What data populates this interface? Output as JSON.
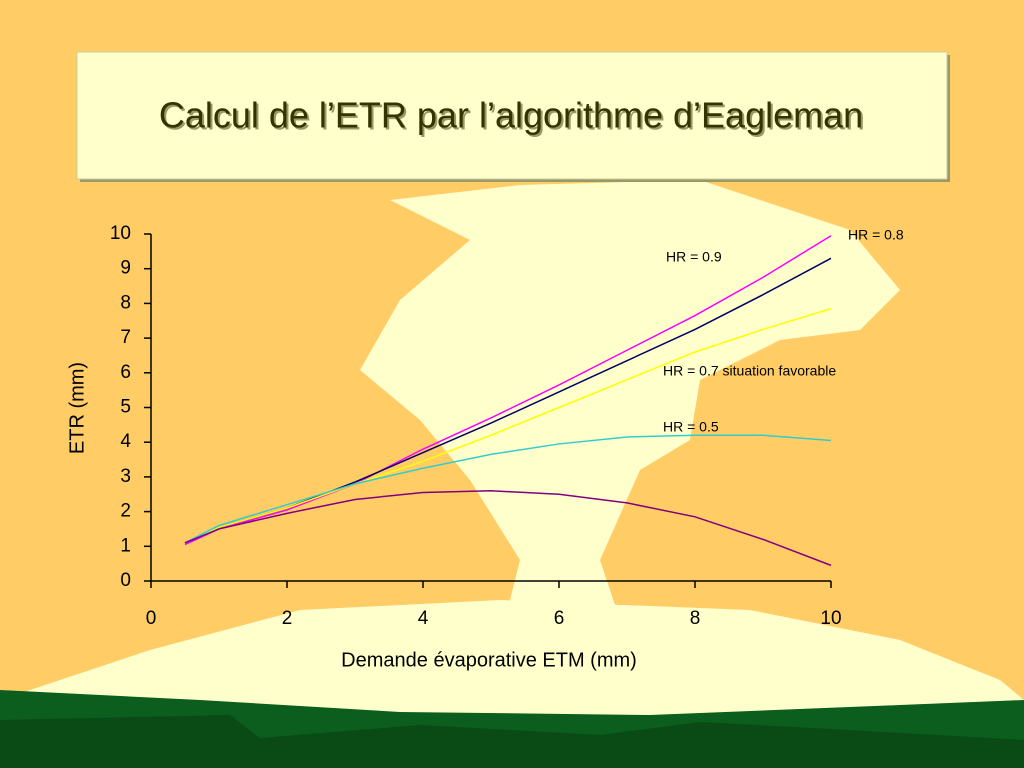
{
  "chart_data": {
    "type": "line",
    "title": "Calcul de l’ETR par l’algorithme d’Eagleman",
    "x_label": "Demande évaporative ETM (mm)",
    "y_label": "ETR (mm)",
    "x": [
      0.5,
      1,
      2,
      3,
      4,
      5,
      6,
      7,
      8,
      9,
      10
    ],
    "series": [
      {
        "name": "HR = 0.8",
        "color": "#ff00ff",
        "values": [
          1.05,
          1.5,
          2.05,
          2.8,
          3.8,
          4.7,
          5.65,
          6.65,
          7.65,
          8.75,
          9.95
        ]
      },
      {
        "name": "HR = 0.9",
        "color": "#000066",
        "values": [
          1.1,
          1.55,
          2.1,
          2.85,
          3.7,
          4.55,
          5.45,
          6.35,
          7.25,
          8.25,
          9.3
        ]
      },
      {
        "name": "HR = 0.7  situation favorable",
        "color": "#ffff00",
        "values": [
          1.1,
          1.55,
          2.1,
          2.8,
          3.45,
          4.2,
          5.0,
          5.8,
          6.6,
          7.25,
          7.85
        ]
      },
      {
        "name": "HR = 0.5",
        "color": "#33cccc",
        "values": [
          1.1,
          1.6,
          2.2,
          2.8,
          3.25,
          3.65,
          3.95,
          4.15,
          4.2,
          4.2,
          4.05
        ]
      },
      {
        "color": "#800080",
        "values": [
          1.1,
          1.5,
          1.95,
          2.35,
          2.55,
          2.6,
          2.5,
          2.25,
          1.85,
          1.2,
          0.45
        ]
      }
    ],
    "xlim": [
      0,
      10
    ],
    "xticks": [
      0,
      2,
      4,
      6,
      8,
      10
    ],
    "ylim": [
      0,
      10
    ],
    "yticks": [
      0,
      1,
      2,
      3,
      4,
      5,
      6,
      7,
      8,
      9,
      10
    ]
  }
}
